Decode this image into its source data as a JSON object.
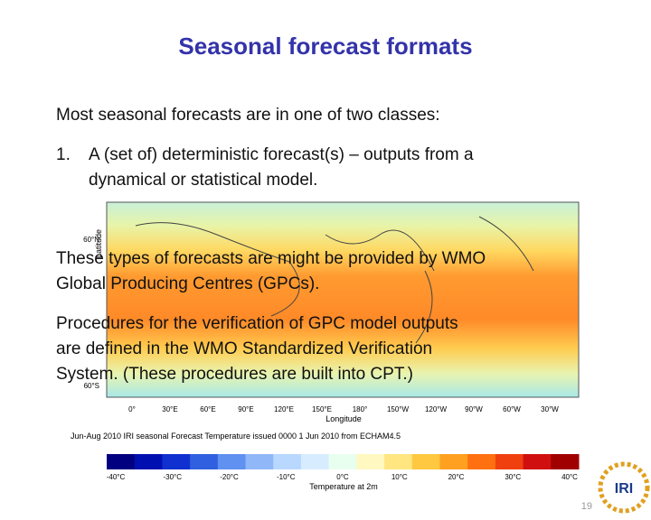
{
  "header": {
    "title": "Seasonal forecast formats"
  },
  "body": {
    "intro": "Most seasonal forecasts are in one of two classes:",
    "list": [
      {
        "marker": "1.",
        "lines": [
          "A (set of) deterministic forecast(s) – outputs from a",
          "dynamical or statistical model."
        ]
      }
    ],
    "paragraphs": [
      [
        "These types of forecasts are might be provided by WMO",
        "Global Producing Centres (GPCs)."
      ],
      [
        "Procedures for the verification of  GPC model outputs",
        "are defined in the WMO Standardized Verification",
        "System. (These procedures are built into CPT.)"
      ]
    ]
  },
  "figure": {
    "lat_label": "Latitude",
    "lat_ticks": [
      "60°N",
      "60°S"
    ],
    "lon_ticks": [
      "0°",
      "30°E",
      "60°E",
      "90°E",
      "120°E",
      "150°E",
      "180°",
      "150°W",
      "120°W",
      "90°W",
      "60°W",
      "30°W"
    ],
    "lon_label": "Longitude",
    "caption": "Jun-Aug 2010 IRI seasonal Forecast Temperature issued 0000 1 Jun 2010 from ECHAM4.5",
    "colorbar_ticks": [
      "-40°C",
      "-30°C",
      "-20°C",
      "-10°C",
      "0°C",
      "10°C",
      "20°C",
      "30°C",
      "40°C"
    ],
    "colorbar_label": "Temperature at 2m"
  },
  "footer": {
    "logo": "IRI",
    "page_number": "19"
  }
}
